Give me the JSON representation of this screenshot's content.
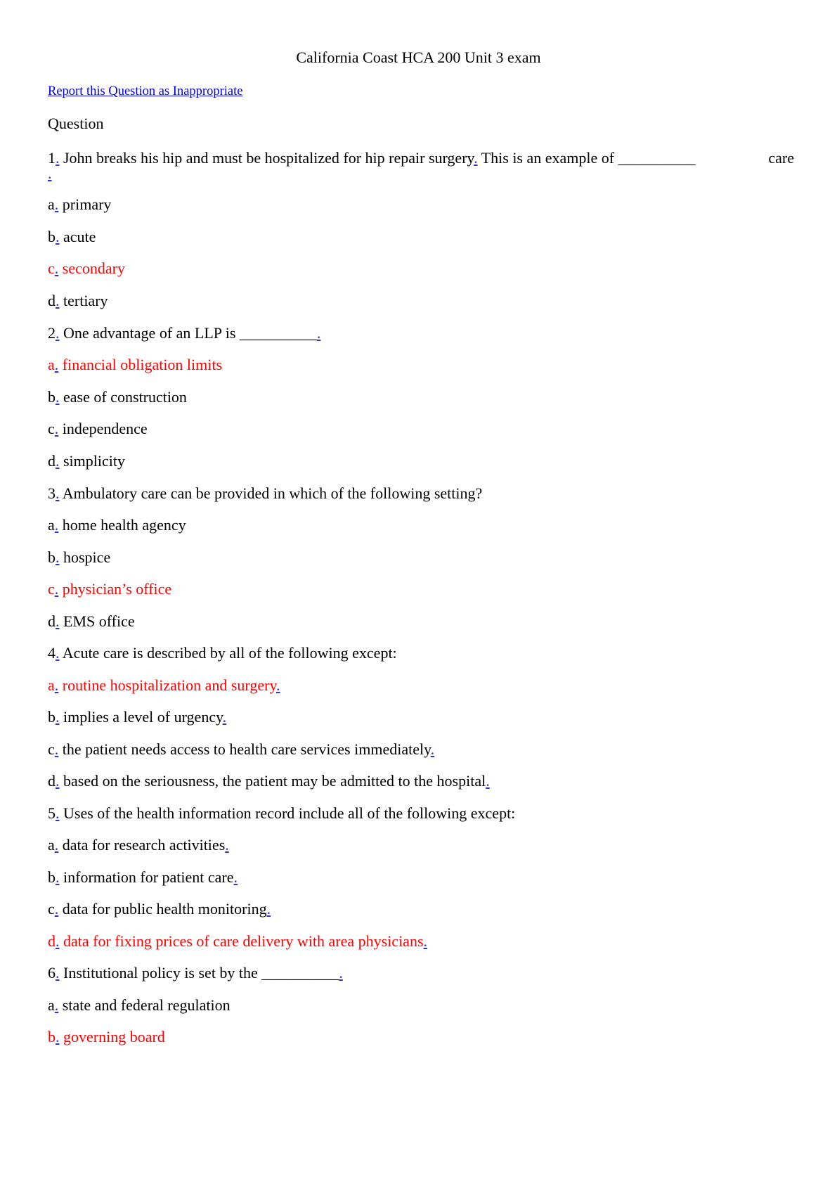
{
  "document": {
    "title": "California Coast HCA 200 Unit 3 exam",
    "report_link": "Report this Question as Inappropriate",
    "section_label": "Question",
    "accent_link_color": "#0000ee",
    "correct_answer_color": "#ff0000"
  },
  "q1": {
    "number": "1",
    "text_a": " John breaks his hip and must be hospitalized for hip repair surgery",
    "text_b": " This is an example of __________",
    "text_c": "care",
    "options": [
      {
        "letter": "a",
        "text": " primary",
        "correct": false
      },
      {
        "letter": "b",
        "text": " acute",
        "correct": false
      },
      {
        "letter": "c",
        "text": " secondary",
        "correct": true
      },
      {
        "letter": "d",
        "text": " tertiary",
        "correct": false
      }
    ]
  },
  "q2": {
    "number": "2",
    "text": " One advantage of an LLP is __________",
    "options": [
      {
        "letter": "a",
        "text": " financial obligation limits",
        "correct": true
      },
      {
        "letter": "b",
        "text": " ease of construction",
        "correct": false
      },
      {
        "letter": "c",
        "text": " independence",
        "correct": false
      },
      {
        "letter": "d",
        "text": " simplicity",
        "correct": false
      }
    ]
  },
  "q3": {
    "number": "3",
    "text": " Ambulatory care can be provided in which of the following setting?",
    "options": [
      {
        "letter": "a",
        "text": " home health agency",
        "correct": false
      },
      {
        "letter": "b",
        "text": " hospice",
        "correct": false
      },
      {
        "letter": "c",
        "text": " physician’s office",
        "correct": true
      },
      {
        "letter": "d",
        "text": " EMS office",
        "correct": false
      }
    ]
  },
  "q4": {
    "number": "4",
    "text": " Acute care is described by all of the following except:",
    "options": [
      {
        "letter": "a",
        "text": " routine hospitalization and surgery",
        "correct": true
      },
      {
        "letter": "b",
        "text": " implies a level of urgency",
        "correct": false
      },
      {
        "letter": "c",
        "text": " the patient needs access to health care services immediately",
        "correct": false
      },
      {
        "letter": "d",
        "text": " based on the seriousness, the patient may be admitted to the hospital",
        "correct": false
      }
    ]
  },
  "q5": {
    "number": "5",
    "text": " Uses of the health information record include all of the following except:",
    "options": [
      {
        "letter": "a",
        "text": " data for research activities",
        "correct": false
      },
      {
        "letter": "b",
        "text": " information for patient care",
        "correct": false
      },
      {
        "letter": "c",
        "text": " data for public health monitoring",
        "correct": false
      },
      {
        "letter": "d",
        "text": " data for fixing prices of care delivery with area physicians",
        "correct": true
      }
    ]
  },
  "q6": {
    "number": "6",
    "text": " Institutional policy is set by the __________",
    "options": [
      {
        "letter": "a",
        "text": " state and federal regulation",
        "correct": false
      },
      {
        "letter": "b",
        "text": " governing board",
        "correct": true
      }
    ]
  },
  "punct": {
    "dot": "."
  }
}
